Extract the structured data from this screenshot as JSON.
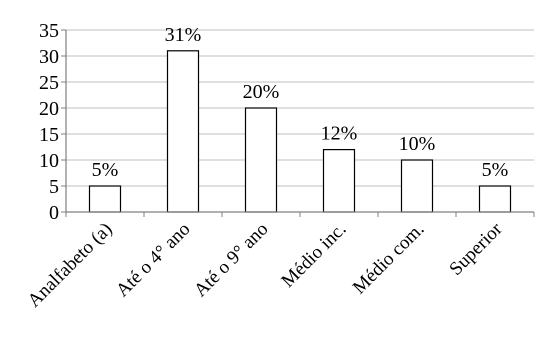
{
  "chart_data": {
    "type": "bar",
    "categories": [
      "Analfabeto (a)",
      "Até o 4° ano",
      "Até o 9° ano",
      "Médio inc.",
      "Médio com.",
      "Superior"
    ],
    "values": [
      5,
      31,
      20,
      12,
      10,
      5
    ],
    "data_labels": [
      "5%",
      "31%",
      "20%",
      "12%",
      "10%",
      "5%"
    ],
    "yticks": [
      0,
      5,
      10,
      15,
      20,
      25,
      30,
      35
    ],
    "ylim": [
      0,
      35
    ],
    "grid": true,
    "legend": "none",
    "colors": {
      "bar_fill": "#ffffff",
      "bar_stroke": "#000000",
      "grid": "#bfbfbf",
      "axis": "#808080"
    }
  }
}
